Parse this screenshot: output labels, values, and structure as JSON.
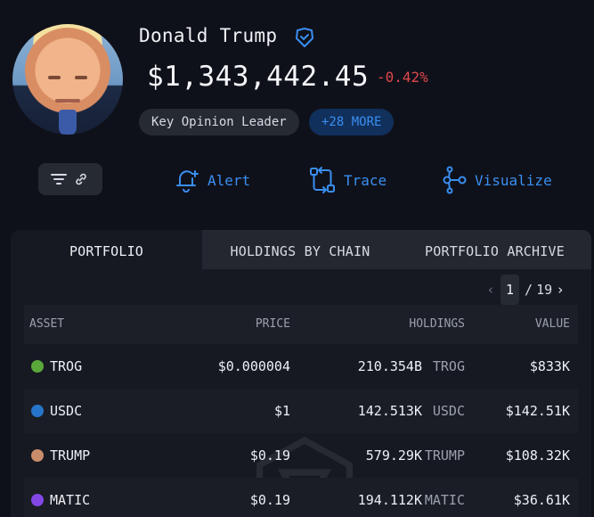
{
  "profile": {
    "name": "Donald Trump",
    "balance": "$1,343,442.45",
    "change": "-0.42%",
    "tags": [
      "Key Opinion Leader",
      "+28 MORE"
    ]
  },
  "actions": {
    "alert": "Alert",
    "trace": "Trace",
    "visualize": "Visualize"
  },
  "tabs": [
    "PORTFOLIO",
    "HOLDINGS BY CHAIN",
    "PORTFOLIO ARCHIVE"
  ],
  "pager": {
    "current": "1",
    "separator": "/",
    "total": "19"
  },
  "table": {
    "headers": [
      "ASSET",
      "PRICE",
      "HOLDINGS",
      "VALUE"
    ],
    "rows": [
      {
        "asset": "TROG",
        "icon": "trog-coin-icon",
        "icon_color": "#5aa83a",
        "price": "$0.000004",
        "holdings": "210.354B",
        "symbol": "TROG",
        "value": "$833K"
      },
      {
        "asset": "USDC",
        "icon": "usdc-coin-icon",
        "icon_color": "#2775ca",
        "price": "$1",
        "holdings": "142.513K",
        "symbol": "USDC",
        "value": "$142.51K"
      },
      {
        "asset": "TRUMP",
        "icon": "trump-coin-icon",
        "icon_color": "#c98c6a",
        "price": "$0.19",
        "holdings": "579.29K",
        "symbol": "TRUMP",
        "value": "$108.32K"
      },
      {
        "asset": "MATIC",
        "icon": "matic-coin-icon",
        "icon_color": "#8247e5",
        "price": "$0.19",
        "holdings": "194.112K",
        "symbol": "MATIC",
        "value": "$36.61K"
      }
    ]
  },
  "colors": {
    "background": "#0f111a",
    "accent": "#3a8ef0",
    "negative": "#e0474c",
    "card": "#161922"
  }
}
